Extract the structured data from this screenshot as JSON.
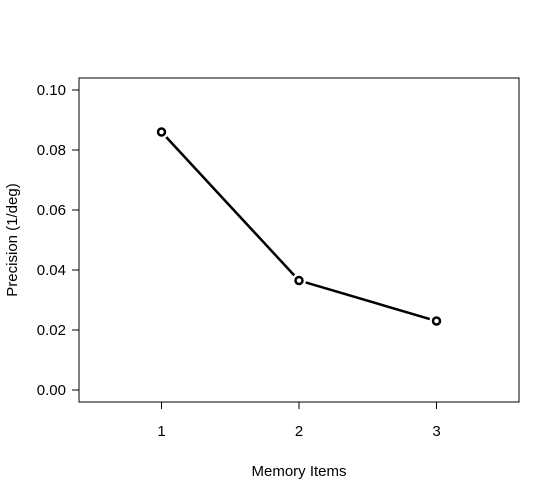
{
  "chart_data": {
    "type": "line",
    "title": "",
    "xlabel": "Memory Items",
    "ylabel": "Precision (1/deg)",
    "x": [
      1,
      2,
      3
    ],
    "x_tick_labels": [
      "1",
      "2",
      "3"
    ],
    "y_tick_labels": [
      "0.00",
      "0.02",
      "0.04",
      "0.06",
      "0.08",
      "0.10"
    ],
    "y_ticks": [
      0.0,
      0.02,
      0.04,
      0.06,
      0.08,
      0.1
    ],
    "xlim": [
      0.4,
      3.6
    ],
    "ylim": [
      -0.004,
      0.104
    ],
    "grid": false,
    "legend": "none",
    "series": [
      {
        "values": [
          0.086,
          0.0365,
          0.023
        ],
        "color": "#000000",
        "marker": "open-circle"
      }
    ]
  }
}
